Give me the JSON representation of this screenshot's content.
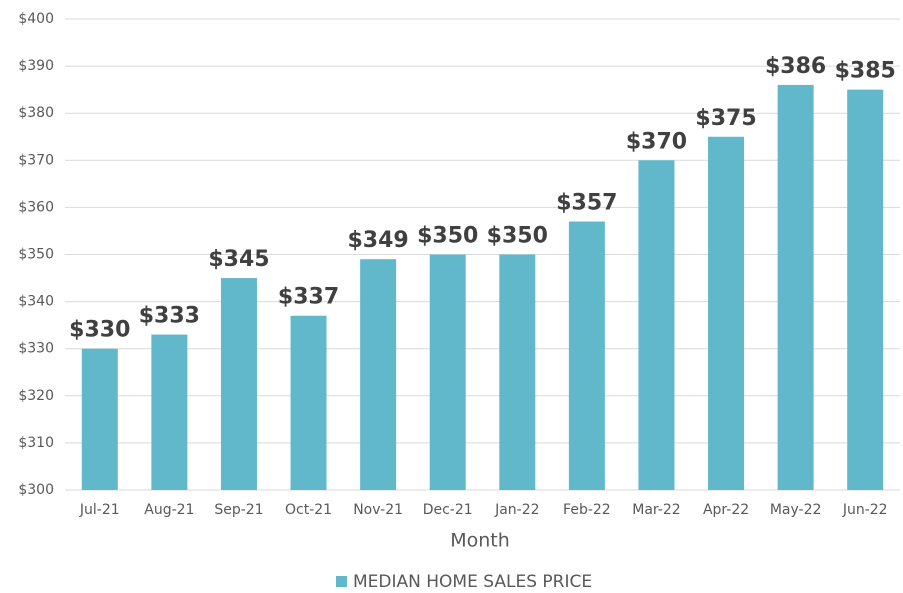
{
  "chart_data": {
    "type": "bar",
    "x_label": "Month",
    "categories": [
      "Jul-21",
      "Aug-21",
      "Sep-21",
      "Oct-21",
      "Nov-21",
      "Dec-21",
      "Jan-22",
      "Feb-22",
      "Mar-22",
      "Apr-22",
      "May-22",
      "Jun-22"
    ],
    "series": [
      {
        "name": "MEDIAN HOME SALES PRICE",
        "color": "#62b8cb",
        "values": [
          330,
          333,
          345,
          337,
          349,
          350,
          350,
          357,
          370,
          375,
          386,
          385
        ],
        "value_labels": [
          "$330",
          "$333",
          "$345",
          "$337",
          "$349",
          "$350",
          "$350",
          "$357",
          "$370",
          "$375",
          "$386",
          "$385"
        ]
      }
    ],
    "ylim": [
      300,
      400
    ],
    "yticks": [
      {
        "value": 300,
        "label": "$300"
      },
      {
        "value": 310,
        "label": "$310"
      },
      {
        "value": 320,
        "label": "$320"
      },
      {
        "value": 330,
        "label": "$330"
      },
      {
        "value": 340,
        "label": "$340"
      },
      {
        "value": 350,
        "label": "$350"
      },
      {
        "value": 360,
        "label": "$360"
      },
      {
        "value": 370,
        "label": "$370"
      },
      {
        "value": 380,
        "label": "$380"
      },
      {
        "value": 390,
        "label": "$390"
      },
      {
        "value": 400,
        "label": "$400"
      }
    ],
    "grid": true,
    "legend": "bottom"
  }
}
